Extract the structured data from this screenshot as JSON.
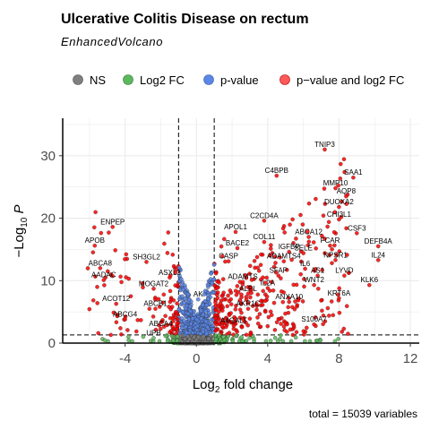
{
  "chart_data": {
    "type": "scatter",
    "title": "Ulcerative Colitis Disease on rectum",
    "subtitle": "EnhancedVolcano",
    "xlabel": "Log2 fold change",
    "ylabel": "−Log10 P",
    "caption": "total = 15039 variables",
    "xlim": [
      -7.5,
      12.5
    ],
    "ylim": [
      0,
      36
    ],
    "xticks": [
      -4,
      0,
      4,
      8,
      12
    ],
    "yticks": [
      0,
      10,
      20,
      30
    ],
    "fc_cutoff": 1,
    "p_cutoff_log10": 1.3,
    "grid": true,
    "legend_position": "top",
    "legend": [
      {
        "key": "NS",
        "label": "NS",
        "color": "#7f7f7f"
      },
      {
        "key": "FC",
        "label": "Log2 FC",
        "color": "#5cb85c"
      },
      {
        "key": "P",
        "label": "p-value",
        "color": "#5b86e5"
      },
      {
        "key": "FCP",
        "label": "p−value and log2 FC",
        "color": "#ff0000"
      }
    ],
    "colors": {
      "NS": "#7f7f7f",
      "FC": "#5cb85c",
      "P": "#5b86e5",
      "FCP": "#ff0000"
    },
    "labels": [
      {
        "gene": "TNIP3",
        "x": 7.2,
        "y": 31.0
      },
      {
        "gene": "SAA1",
        "x": 8.8,
        "y": 26.5
      },
      {
        "gene": "C4BPB",
        "x": 4.5,
        "y": 26.8
      },
      {
        "gene": "MMP10",
        "x": 7.8,
        "y": 24.8
      },
      {
        "gene": "AQP8",
        "x": 8.4,
        "y": 23.5
      },
      {
        "gene": "DUOXA2",
        "x": 8.0,
        "y": 21.8
      },
      {
        "gene": "CHI3L1",
        "x": 8.0,
        "y": 19.8
      },
      {
        "gene": "C2CD4A",
        "x": 3.8,
        "y": 19.6
      },
      {
        "gene": "APOL1",
        "x": 2.2,
        "y": 17.8
      },
      {
        "gene": "ABCA12",
        "x": 6.3,
        "y": 17.0
      },
      {
        "gene": "CSF3",
        "x": 9.0,
        "y": 17.6
      },
      {
        "gene": "COL11",
        "x": 3.8,
        "y": 16.2
      },
      {
        "gene": "FCAR",
        "x": 7.5,
        "y": 15.6
      },
      {
        "gene": "DEFB4A",
        "x": 10.2,
        "y": 15.5
      },
      {
        "gene": "BACE2",
        "x": 2.3,
        "y": 15.2
      },
      {
        "gene": "IGFBP",
        "x": 5.2,
        "y": 14.6
      },
      {
        "gene": "SELE",
        "x": 6.0,
        "y": 14.4
      },
      {
        "gene": "NPSR1",
        "x": 7.8,
        "y": 13.3
      },
      {
        "gene": "ADAMTS4",
        "x": 4.9,
        "y": 13.1
      },
      {
        "gene": "IL24",
        "x": 10.2,
        "y": 13.3
      },
      {
        "gene": "CASP",
        "x": 1.8,
        "y": 13.1
      },
      {
        "gene": "IL6",
        "x": 6.1,
        "y": 11.9
      },
      {
        "gene": "LYVD",
        "x": 8.3,
        "y": 10.8
      },
      {
        "gene": "AS1",
        "x": 6.8,
        "y": 10.8
      },
      {
        "gene": "SFAP",
        "x": 4.6,
        "y": 10.8
      },
      {
        "gene": "WNT2",
        "x": 6.6,
        "y": 9.3
      },
      {
        "gene": "KLK6",
        "x": 9.7,
        "y": 9.3
      },
      {
        "gene": "ADAMTS",
        "x": 2.6,
        "y": 9.8
      },
      {
        "gene": "IL2A",
        "x": 4.0,
        "y": 8.8
      },
      {
        "gene": "ALPL",
        "x": 2.9,
        "y": 7.9
      },
      {
        "gene": "KRT6A",
        "x": 8.0,
        "y": 7.2
      },
      {
        "gene": "ANXA10",
        "x": 5.2,
        "y": 6.6
      },
      {
        "gene": "AKR1C",
        "x": 2.9,
        "y": 5.5
      },
      {
        "gene": "S100A7",
        "x": 6.6,
        "y": 3.0
      },
      {
        "gene": "A4GALT",
        "x": 2.1,
        "y": 2.8
      },
      {
        "gene": "ENPEP",
        "x": -4.7,
        "y": 18.6
      },
      {
        "gene": "APOB",
        "x": -5.7,
        "y": 15.6
      },
      {
        "gene": "SH3GL2",
        "x": -2.8,
        "y": 13.0
      },
      {
        "gene": "ABCA8",
        "x": -5.4,
        "y": 12.0
      },
      {
        "gene": "AADAC",
        "x": -5.2,
        "y": 10.1
      },
      {
        "gene": "ASXL3",
        "x": -1.5,
        "y": 10.5
      },
      {
        "gene": "MOGAT2",
        "x": -2.4,
        "y": 8.7
      },
      {
        "gene": "ACOT12",
        "x": -4.5,
        "y": 6.3
      },
      {
        "gene": "ABCB1",
        "x": -2.3,
        "y": 5.5
      },
      {
        "gene": "ABCG4",
        "x": -4.0,
        "y": 3.8
      },
      {
        "gene": "ABCA4",
        "x": -2.0,
        "y": 2.3
      },
      {
        "gene": "UPB",
        "x": -2.4,
        "y": 0.8
      },
      {
        "gene": "AK",
        "x": 0.1,
        "y": 7.0
      }
    ]
  }
}
